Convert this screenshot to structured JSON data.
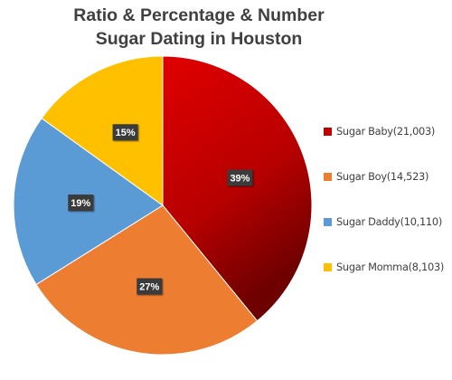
{
  "chart_data": {
    "type": "pie",
    "title_lines": [
      "Ratio & Percentage & Number",
      "Sugar Dating in Houston"
    ],
    "slices": [
      {
        "name": "Sugar Baby",
        "value": 21003,
        "legend_label": "Sugar Baby(21,003)",
        "percent_label": "39%",
        "color": "#c00000"
      },
      {
        "name": "Sugar Boy",
        "value": 14523,
        "legend_label": "Sugar Boy(14,523)",
        "percent_label": "27%",
        "color": "#ed7d31"
      },
      {
        "name": "Sugar Daddy",
        "value": 10110,
        "legend_label": "Sugar Daddy(10,110)",
        "percent_label": "19%",
        "color": "#5b9bd5"
      },
      {
        "name": "Sugar Momma",
        "value": 8103,
        "legend_label": "Sugar Momma(8,103)",
        "percent_label": "15%",
        "color": "#ffc000"
      }
    ],
    "start_angle": "12 o'clock",
    "direction": "clockwise",
    "legend_position": "right",
    "grid": false
  }
}
